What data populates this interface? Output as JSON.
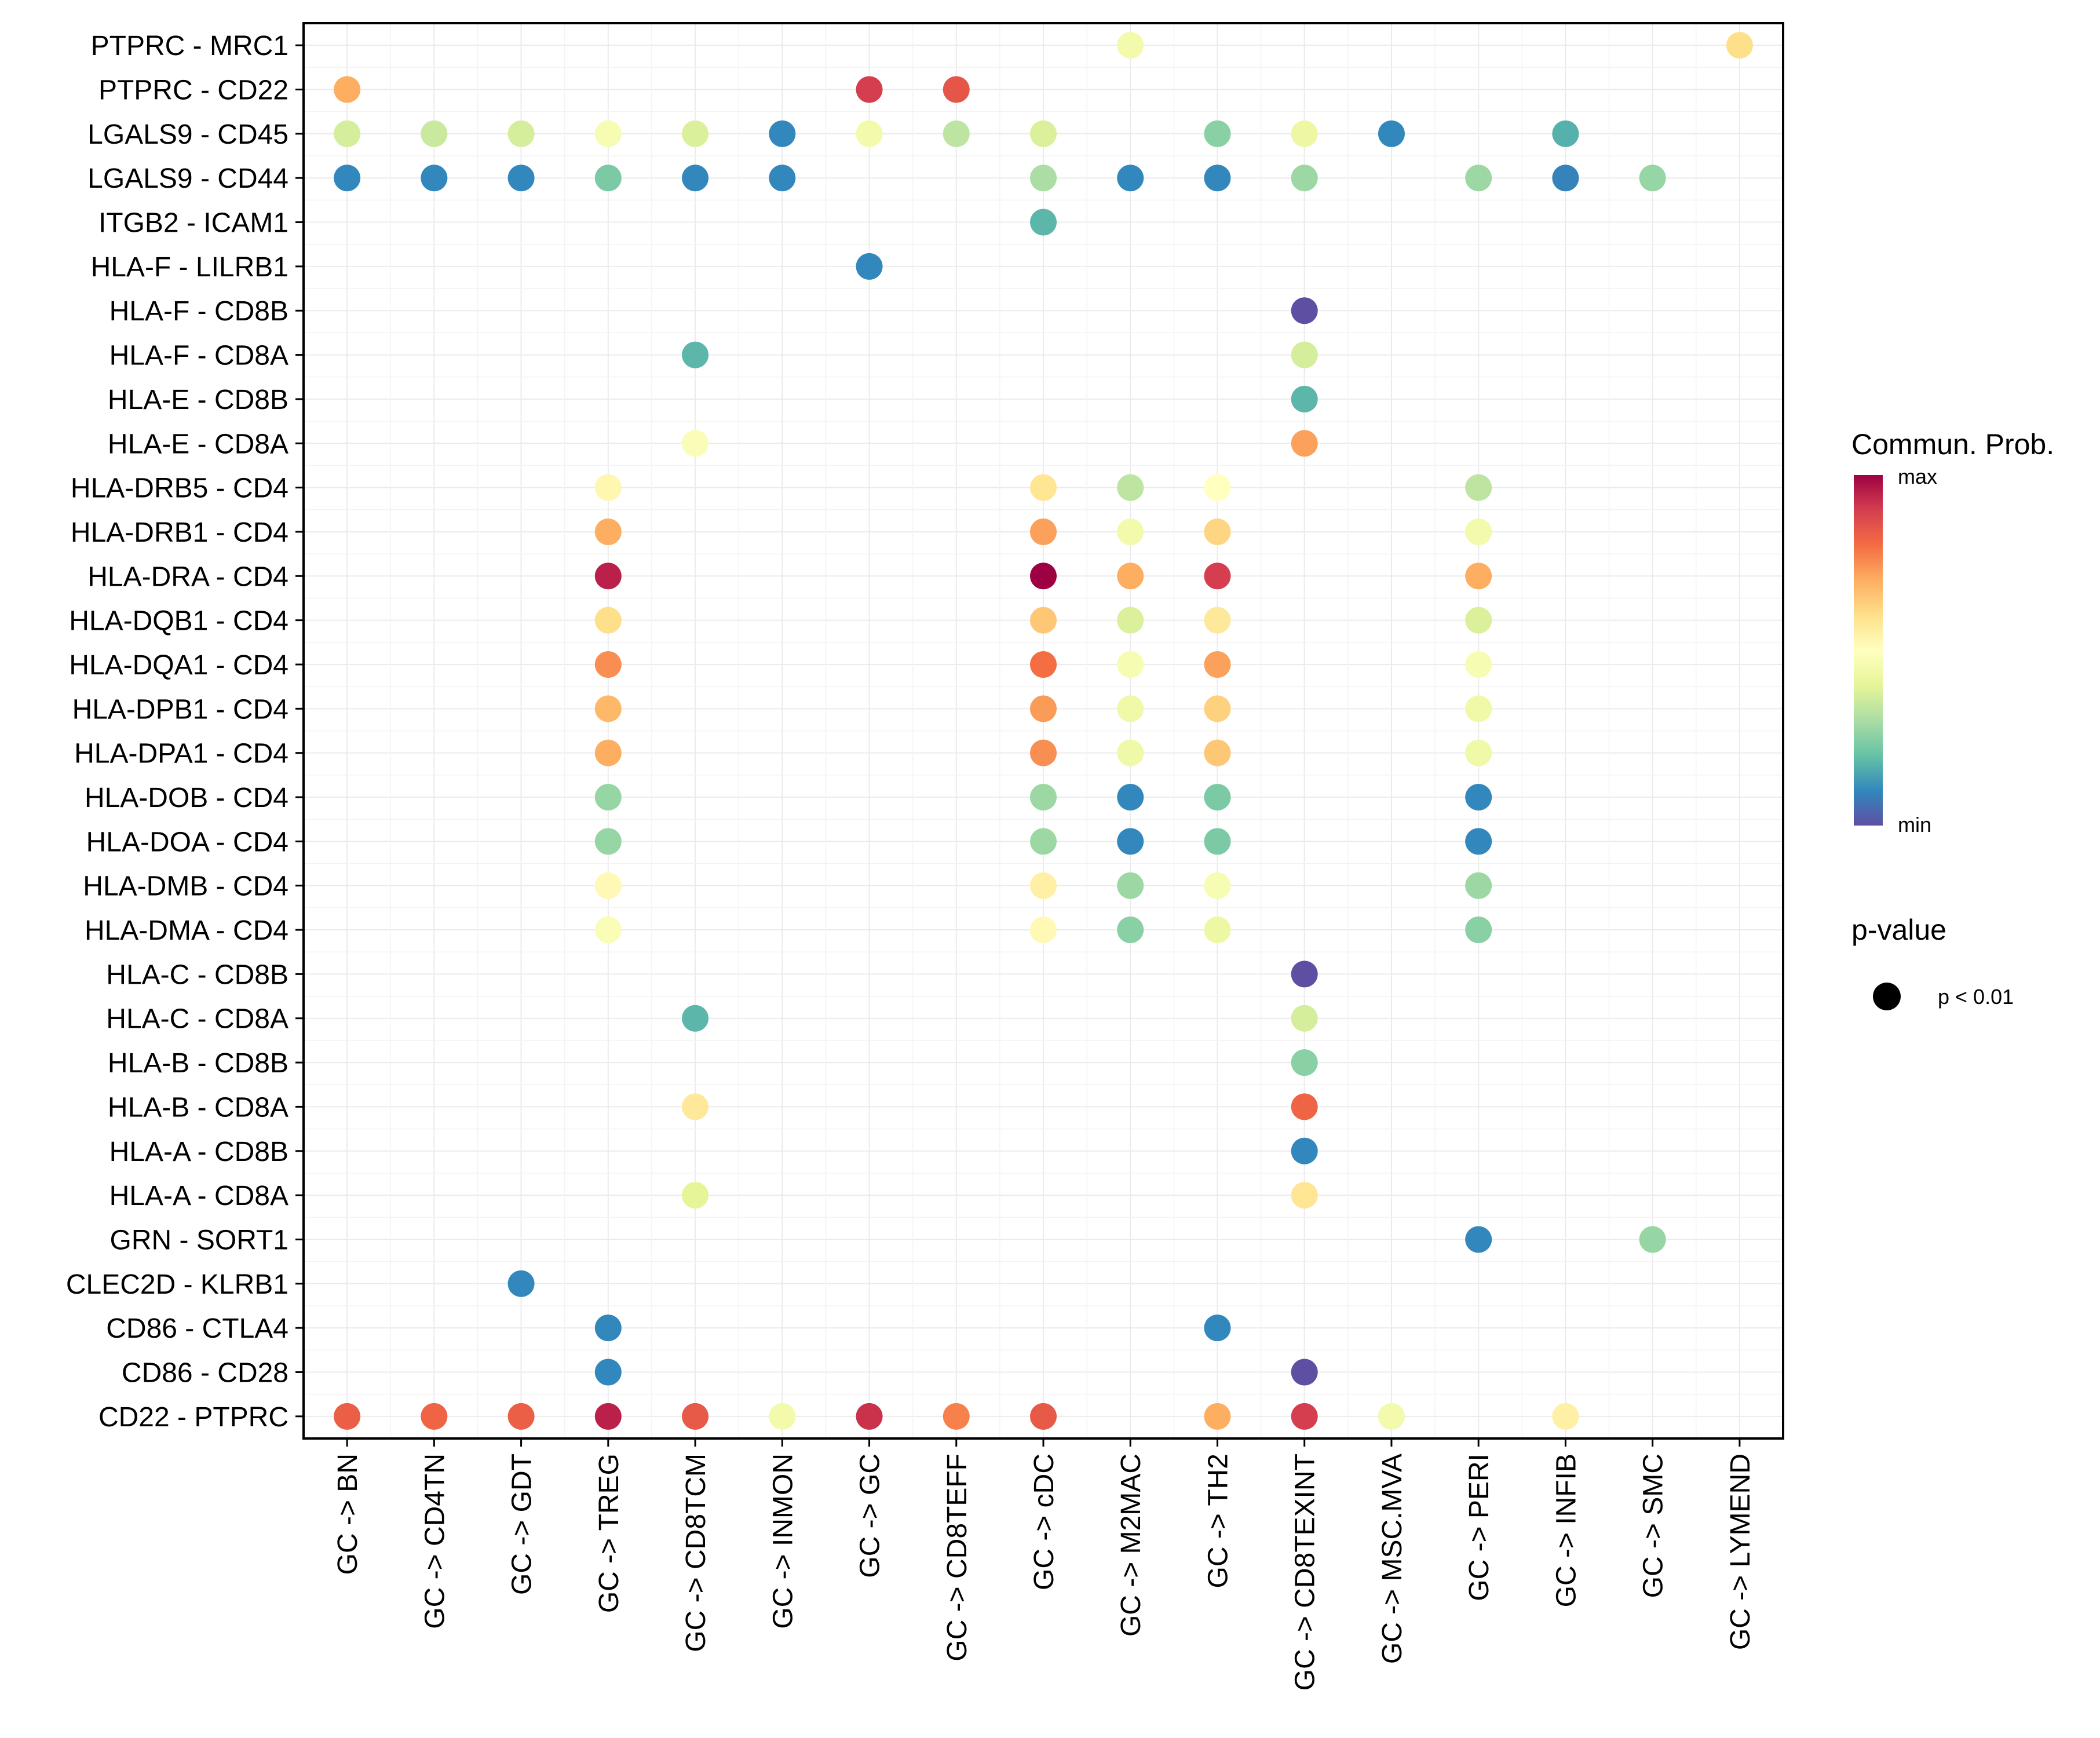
{
  "chart_data": {
    "type": "scatter",
    "subtype": "dot-matrix",
    "title": "",
    "xlabel": "",
    "ylabel": "",
    "x_categories": [
      "GC -> BN",
      "GC -> CD4TN",
      "GC -> GDT",
      "GC -> TREG",
      "GC -> CD8TCM",
      "GC -> INMON",
      "GC -> GC",
      "GC -> CD8TEFF",
      "GC -> cDC",
      "GC -> M2MAC",
      "GC -> TH2",
      "GC -> CD8TEXINT",
      "GC -> MSC.MVA",
      "GC -> PERI",
      "GC -> INFIB",
      "GC -> SMC",
      "GC -> LYMEND"
    ],
    "y_categories": [
      "PTPRC - MRC1",
      "PTPRC - CD22",
      "LGALS9 - CD45",
      "LGALS9 - CD44",
      "ITGB2 - ICAM1",
      "HLA-F - LILRB1",
      "HLA-F - CD8B",
      "HLA-F - CD8A",
      "HLA-E - CD8B",
      "HLA-E - CD8A",
      "HLA-DRB5 - CD4",
      "HLA-DRB1 - CD4",
      "HLA-DRA - CD4",
      "HLA-DQB1 - CD4",
      "HLA-DQA1 - CD4",
      "HLA-DPB1 - CD4",
      "HLA-DPA1 - CD4",
      "HLA-DOB - CD4",
      "HLA-DOA - CD4",
      "HLA-DMB - CD4",
      "HLA-DMA - CD4",
      "HLA-C - CD8B",
      "HLA-C - CD8A",
      "HLA-B - CD8B",
      "HLA-B - CD8A",
      "HLA-A - CD8B",
      "HLA-A - CD8A",
      "GRN - SORT1",
      "CLEC2D - KLRB1",
      "CD86 - CTLA4",
      "CD86 - CD28",
      "CD22 - PTPRC"
    ],
    "value_scale": {
      "min": 0,
      "max": 1,
      "palette": "Spectral (reversed)",
      "colors": [
        "#5E4FA2",
        "#3288BD",
        "#66C2A5",
        "#ABDDA4",
        "#E6F598",
        "#FFFFBF",
        "#FEE08B",
        "#FDAE61",
        "#F46D43",
        "#D53E4F",
        "#9E0142"
      ]
    },
    "points": [
      {
        "y": "PTPRC - MRC1",
        "x": "GC -> M2MAC",
        "value": 0.45
      },
      {
        "y": "PTPRC - MRC1",
        "x": "GC -> LYMEND",
        "value": 0.6
      },
      {
        "y": "PTPRC - CD22",
        "x": "GC -> BN",
        "value": 0.7
      },
      {
        "y": "PTPRC - CD22",
        "x": "GC -> GC",
        "value": 0.9
      },
      {
        "y": "PTPRC - CD22",
        "x": "GC -> CD8TEFF",
        "value": 0.85
      },
      {
        "y": "LGALS9 - CD45",
        "x": "GC -> BN",
        "value": 0.37
      },
      {
        "y": "LGALS9 - CD45",
        "x": "GC -> CD4TN",
        "value": 0.35
      },
      {
        "y": "LGALS9 - CD45",
        "x": "GC -> GDT",
        "value": 0.37
      },
      {
        "y": "LGALS9 - CD45",
        "x": "GC -> TREG",
        "value": 0.47
      },
      {
        "y": "LGALS9 - CD45",
        "x": "GC -> CD8TCM",
        "value": 0.38
      },
      {
        "y": "LGALS9 - CD45",
        "x": "GC -> INMON",
        "value": 0.1
      },
      {
        "y": "LGALS9 - CD45",
        "x": "GC -> GC",
        "value": 0.45
      },
      {
        "y": "LGALS9 - CD45",
        "x": "GC -> CD8TEFF",
        "value": 0.33
      },
      {
        "y": "LGALS9 - CD45",
        "x": "GC -> cDC",
        "value": 0.38
      },
      {
        "y": "LGALS9 - CD45",
        "x": "GC -> TH2",
        "value": 0.25
      },
      {
        "y": "LGALS9 - CD45",
        "x": "GC -> CD8TEXINT",
        "value": 0.43
      },
      {
        "y": "LGALS9 - CD45",
        "x": "GC -> MSC.MVA",
        "value": 0.1
      },
      {
        "y": "LGALS9 - CD45",
        "x": "GC -> INFIB",
        "value": 0.17
      },
      {
        "y": "LGALS9 - CD44",
        "x": "GC -> BN",
        "value": 0.1
      },
      {
        "y": "LGALS9 - CD44",
        "x": "GC -> CD4TN",
        "value": 0.1
      },
      {
        "y": "LGALS9 - CD44",
        "x": "GC -> GDT",
        "value": 0.1
      },
      {
        "y": "LGALS9 - CD44",
        "x": "GC -> TREG",
        "value": 0.23
      },
      {
        "y": "LGALS9 - CD44",
        "x": "GC -> CD8TCM",
        "value": 0.1
      },
      {
        "y": "LGALS9 - CD44",
        "x": "GC -> INMON",
        "value": 0.1
      },
      {
        "y": "LGALS9 - CD44",
        "x": "GC -> cDC",
        "value": 0.3
      },
      {
        "y": "LGALS9 - CD44",
        "x": "GC -> M2MAC",
        "value": 0.1
      },
      {
        "y": "LGALS9 - CD44",
        "x": "GC -> TH2",
        "value": 0.1
      },
      {
        "y": "LGALS9 - CD44",
        "x": "GC -> CD8TEXINT",
        "value": 0.28
      },
      {
        "y": "LGALS9 - CD44",
        "x": "GC -> PERI",
        "value": 0.28
      },
      {
        "y": "LGALS9 - CD44",
        "x": "GC -> INFIB",
        "value": 0.09
      },
      {
        "y": "LGALS9 - CD44",
        "x": "GC -> SMC",
        "value": 0.27
      },
      {
        "y": "ITGB2 - ICAM1",
        "x": "GC -> cDC",
        "value": 0.18
      },
      {
        "y": "HLA-F - LILRB1",
        "x": "GC -> GC",
        "value": 0.1
      },
      {
        "y": "HLA-F - CD8B",
        "x": "GC -> CD8TEXINT",
        "value": 0.0
      },
      {
        "y": "HLA-F - CD8A",
        "x": "GC -> CD8TCM",
        "value": 0.18
      },
      {
        "y": "HLA-F - CD8A",
        "x": "GC -> CD8TEXINT",
        "value": 0.37
      },
      {
        "y": "HLA-E - CD8B",
        "x": "GC -> CD8TEXINT",
        "value": 0.18
      },
      {
        "y": "HLA-E - CD8A",
        "x": "GC -> CD8TCM",
        "value": 0.48
      },
      {
        "y": "HLA-E - CD8A",
        "x": "GC -> CD8TEXINT",
        "value": 0.72
      },
      {
        "y": "HLA-DRB5 - CD4",
        "x": "GC -> TREG",
        "value": 0.53
      },
      {
        "y": "HLA-DRB5 - CD4",
        "x": "GC -> cDC",
        "value": 0.58
      },
      {
        "y": "HLA-DRB5 - CD4",
        "x": "GC -> M2MAC",
        "value": 0.33
      },
      {
        "y": "HLA-DRB5 - CD4",
        "x": "GC -> TH2",
        "value": 0.5
      },
      {
        "y": "HLA-DRB5 - CD4",
        "x": "GC -> PERI",
        "value": 0.33
      },
      {
        "y": "HLA-DRB1 - CD4",
        "x": "GC -> TREG",
        "value": 0.7
      },
      {
        "y": "HLA-DRB1 - CD4",
        "x": "GC -> cDC",
        "value": 0.72
      },
      {
        "y": "HLA-DRB1 - CD4",
        "x": "GC -> M2MAC",
        "value": 0.45
      },
      {
        "y": "HLA-DRB1 - CD4",
        "x": "GC -> TH2",
        "value": 0.62
      },
      {
        "y": "HLA-DRB1 - CD4",
        "x": "GC -> PERI",
        "value": 0.45
      },
      {
        "y": "HLA-DRA - CD4",
        "x": "GC -> TREG",
        "value": 0.95
      },
      {
        "y": "HLA-DRA - CD4",
        "x": "GC -> cDC",
        "value": 1.0
      },
      {
        "y": "HLA-DRA - CD4",
        "x": "GC -> M2MAC",
        "value": 0.7
      },
      {
        "y": "HLA-DRA - CD4",
        "x": "GC -> TH2",
        "value": 0.9
      },
      {
        "y": "HLA-DRA - CD4",
        "x": "GC -> PERI",
        "value": 0.7
      },
      {
        "y": "HLA-DQB1 - CD4",
        "x": "GC -> TREG",
        "value": 0.6
      },
      {
        "y": "HLA-DQB1 - CD4",
        "x": "GC -> cDC",
        "value": 0.65
      },
      {
        "y": "HLA-DQB1 - CD4",
        "x": "GC -> M2MAC",
        "value": 0.38
      },
      {
        "y": "HLA-DQB1 - CD4",
        "x": "GC -> TH2",
        "value": 0.57
      },
      {
        "y": "HLA-DQB1 - CD4",
        "x": "GC -> PERI",
        "value": 0.38
      },
      {
        "y": "HLA-DQA1 - CD4",
        "x": "GC -> TREG",
        "value": 0.75
      },
      {
        "y": "HLA-DQA1 - CD4",
        "x": "GC -> cDC",
        "value": 0.8
      },
      {
        "y": "HLA-DQA1 - CD4",
        "x": "GC -> M2MAC",
        "value": 0.47
      },
      {
        "y": "HLA-DQA1 - CD4",
        "x": "GC -> TH2",
        "value": 0.72
      },
      {
        "y": "HLA-DQA1 - CD4",
        "x": "GC -> PERI",
        "value": 0.47
      },
      {
        "y": "HLA-DPB1 - CD4",
        "x": "GC -> TREG",
        "value": 0.68
      },
      {
        "y": "HLA-DPB1 - CD4",
        "x": "GC -> cDC",
        "value": 0.73
      },
      {
        "y": "HLA-DPB1 - CD4",
        "x": "GC -> M2MAC",
        "value": 0.44
      },
      {
        "y": "HLA-DPB1 - CD4",
        "x": "GC -> TH2",
        "value": 0.63
      },
      {
        "y": "HLA-DPB1 - CD4",
        "x": "GC -> PERI",
        "value": 0.44
      },
      {
        "y": "HLA-DPA1 - CD4",
        "x": "GC -> TREG",
        "value": 0.7
      },
      {
        "y": "HLA-DPA1 - CD4",
        "x": "GC -> cDC",
        "value": 0.75
      },
      {
        "y": "HLA-DPA1 - CD4",
        "x": "GC -> M2MAC",
        "value": 0.44
      },
      {
        "y": "HLA-DPA1 - CD4",
        "x": "GC -> TH2",
        "value": 0.65
      },
      {
        "y": "HLA-DPA1 - CD4",
        "x": "GC -> PERI",
        "value": 0.44
      },
      {
        "y": "HLA-DOB - CD4",
        "x": "GC -> TREG",
        "value": 0.27
      },
      {
        "y": "HLA-DOB - CD4",
        "x": "GC -> cDC",
        "value": 0.28
      },
      {
        "y": "HLA-DOB - CD4",
        "x": "GC -> M2MAC",
        "value": 0.1
      },
      {
        "y": "HLA-DOB - CD4",
        "x": "GC -> TH2",
        "value": 0.23
      },
      {
        "y": "HLA-DOB - CD4",
        "x": "GC -> PERI",
        "value": 0.1
      },
      {
        "y": "HLA-DOA - CD4",
        "x": "GC -> TREG",
        "value": 0.27
      },
      {
        "y": "HLA-DOA - CD4",
        "x": "GC -> cDC",
        "value": 0.28
      },
      {
        "y": "HLA-DOA - CD4",
        "x": "GC -> M2MAC",
        "value": 0.1
      },
      {
        "y": "HLA-DOA - CD4",
        "x": "GC -> TH2",
        "value": 0.23
      },
      {
        "y": "HLA-DOA - CD4",
        "x": "GC -> PERI",
        "value": 0.1
      },
      {
        "y": "HLA-DMB - CD4",
        "x": "GC -> TREG",
        "value": 0.52
      },
      {
        "y": "HLA-DMB - CD4",
        "x": "GC -> cDC",
        "value": 0.55
      },
      {
        "y": "HLA-DMB - CD4",
        "x": "GC -> M2MAC",
        "value": 0.28
      },
      {
        "y": "HLA-DMB - CD4",
        "x": "GC -> TH2",
        "value": 0.47
      },
      {
        "y": "HLA-DMB - CD4",
        "x": "GC -> PERI",
        "value": 0.28
      },
      {
        "y": "HLA-DMA - CD4",
        "x": "GC -> TREG",
        "value": 0.48
      },
      {
        "y": "HLA-DMA - CD4",
        "x": "GC -> cDC",
        "value": 0.52
      },
      {
        "y": "HLA-DMA - CD4",
        "x": "GC -> M2MAC",
        "value": 0.25
      },
      {
        "y": "HLA-DMA - CD4",
        "x": "GC -> TH2",
        "value": 0.43
      },
      {
        "y": "HLA-DMA - CD4",
        "x": "GC -> PERI",
        "value": 0.25
      },
      {
        "y": "HLA-C - CD8B",
        "x": "GC -> CD8TEXINT",
        "value": 0.0
      },
      {
        "y": "HLA-C - CD8A",
        "x": "GC -> CD8TCM",
        "value": 0.18
      },
      {
        "y": "HLA-C - CD8A",
        "x": "GC -> CD8TEXINT",
        "value": 0.37
      },
      {
        "y": "HLA-B - CD8B",
        "x": "GC -> CD8TEXINT",
        "value": 0.25
      },
      {
        "y": "HLA-B - CD8A",
        "x": "GC -> CD8TCM",
        "value": 0.57
      },
      {
        "y": "HLA-B - CD8A",
        "x": "GC -> CD8TEXINT",
        "value": 0.82
      },
      {
        "y": "HLA-A - CD8B",
        "x": "GC -> CD8TEXINT",
        "value": 0.1
      },
      {
        "y": "HLA-A - CD8A",
        "x": "GC -> CD8TCM",
        "value": 0.4
      },
      {
        "y": "HLA-A - CD8A",
        "x": "GC -> CD8TEXINT",
        "value": 0.58
      },
      {
        "y": "GRN - SORT1",
        "x": "GC -> PERI",
        "value": 0.1
      },
      {
        "y": "GRN - SORT1",
        "x": "GC -> SMC",
        "value": 0.27
      },
      {
        "y": "CLEC2D - KLRB1",
        "x": "GC -> GDT",
        "value": 0.1
      },
      {
        "y": "CD86 - CTLA4",
        "x": "GC -> TREG",
        "value": 0.1
      },
      {
        "y": "CD86 - CTLA4",
        "x": "GC -> TH2",
        "value": 0.1
      },
      {
        "y": "CD86 - CD28",
        "x": "GC -> TREG",
        "value": 0.1
      },
      {
        "y": "CD86 - CD28",
        "x": "GC -> CD8TEXINT",
        "value": 0.0
      },
      {
        "y": "CD22 - PTPRC",
        "x": "GC -> BN",
        "value": 0.83
      },
      {
        "y": "CD22 - PTPRC",
        "x": "GC -> CD4TN",
        "value": 0.82
      },
      {
        "y": "CD22 - PTPRC",
        "x": "GC -> GDT",
        "value": 0.83
      },
      {
        "y": "CD22 - PTPRC",
        "x": "GC -> TREG",
        "value": 0.95
      },
      {
        "y": "CD22 - PTPRC",
        "x": "GC -> CD8TCM",
        "value": 0.84
      },
      {
        "y": "CD22 - PTPRC",
        "x": "GC -> INMON",
        "value": 0.45
      },
      {
        "y": "CD22 - PTPRC",
        "x": "GC -> GC",
        "value": 0.92
      },
      {
        "y": "CD22 - PTPRC",
        "x": "GC -> CD8TEFF",
        "value": 0.77
      },
      {
        "y": "CD22 - PTPRC",
        "x": "GC -> cDC",
        "value": 0.84
      },
      {
        "y": "CD22 - PTPRC",
        "x": "GC -> TH2",
        "value": 0.7
      },
      {
        "y": "CD22 - PTPRC",
        "x": "GC -> CD8TEXINT",
        "value": 0.9
      },
      {
        "y": "CD22 - PTPRC",
        "x": "GC -> MSC.MVA",
        "value": 0.45
      },
      {
        "y": "CD22 - PTPRC",
        "x": "GC -> INFIB",
        "value": 0.55
      }
    ],
    "legend": {
      "position": "right",
      "color_title": "Commun. Prob.",
      "color_max_label": "max",
      "color_min_label": "min",
      "size_title": "p-value",
      "size_entries": [
        "p < 0.01"
      ]
    },
    "grid": true
  }
}
